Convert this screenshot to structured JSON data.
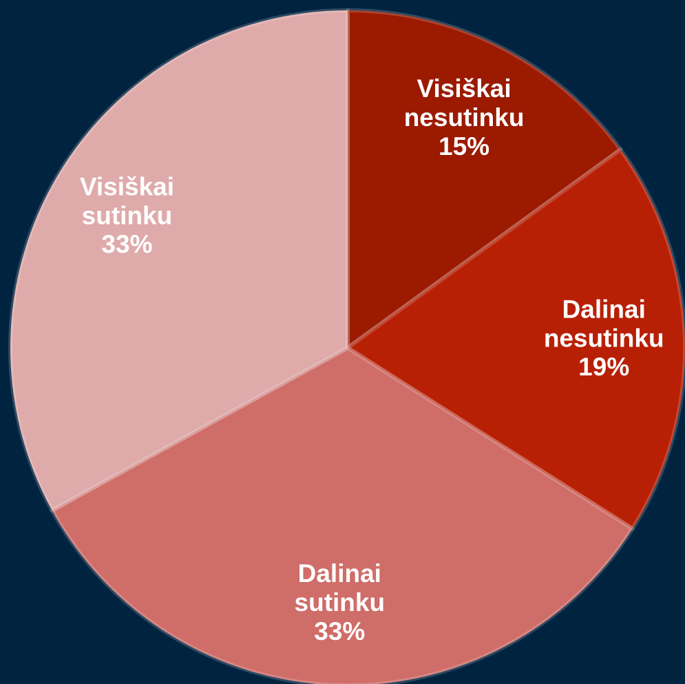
{
  "chart_data": {
    "type": "pie",
    "categories": [
      "Visiškai nesutinku",
      "Dalinai nesutinku",
      "Dalinai sutinku",
      "Visiškai sutinku"
    ],
    "values": [
      15,
      19,
      33,
      33
    ],
    "value_labels": [
      "15%",
      "19%",
      "33%",
      "33%"
    ],
    "colors": [
      "#9b1a00",
      "#b82006",
      "#cf6d68",
      "#dfaaaa"
    ]
  }
}
